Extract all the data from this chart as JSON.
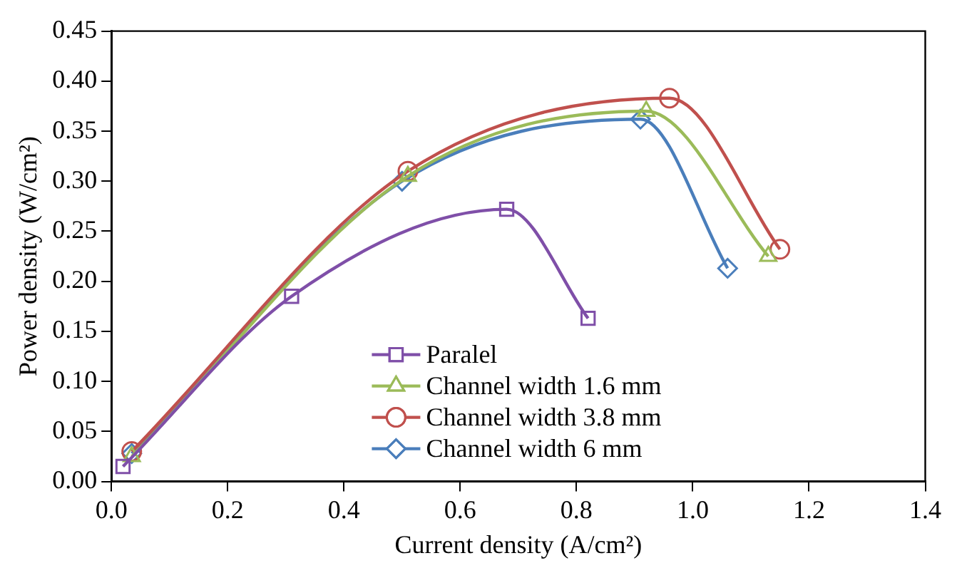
{
  "chart_data": {
    "type": "line",
    "xlabel": "Current density (A/cm²)",
    "ylabel": "Power density (W/cm²)",
    "xlim": [
      0,
      1.4
    ],
    "xticks": [
      {
        "value": 0,
        "label": "0.0"
      },
      {
        "value": 0.2,
        "label": "0.2"
      },
      {
        "value": 0.4,
        "label": "0.4"
      },
      {
        "value": 0.6,
        "label": "0.6"
      },
      {
        "value": 0.8,
        "label": "0.8"
      },
      {
        "value": 1,
        "label": "1.0"
      },
      {
        "value": 1.2,
        "label": "1.2"
      },
      {
        "value": 1.4,
        "label": "1.4"
      }
    ],
    "ylim": [
      0,
      0.45
    ],
    "yticks": [
      {
        "value": 0,
        "label": "0.00"
      },
      {
        "value": 0.05,
        "label": "0.05"
      },
      {
        "value": 0.1,
        "label": "0.10"
      },
      {
        "value": 0.15,
        "label": "0.15"
      },
      {
        "value": 0.2,
        "label": "0.20"
      },
      {
        "value": 0.25,
        "label": "0.25"
      },
      {
        "value": 0.3,
        "label": "0.30"
      },
      {
        "value": 0.35,
        "label": "0.35"
      },
      {
        "value": 0.4,
        "label": "0.40"
      },
      {
        "value": 0.45,
        "label": "0.45"
      }
    ],
    "grid": false,
    "legend": "bottom",
    "line_style": "solid",
    "series": [
      {
        "name": "Paralel",
        "color": "#7f4fa8",
        "marker": "square",
        "x": [
          0.02,
          0.31,
          0.68,
          0.82
        ],
        "values": [
          0.015,
          0.185,
          0.272,
          0.163
        ]
      },
      {
        "name": "Channel width 1.6 mm",
        "color": "#9bbb59",
        "marker": "triangle",
        "x": [
          0.035,
          0.51,
          0.92,
          1.13
        ],
        "values": [
          0.025,
          0.305,
          0.37,
          0.225
        ]
      },
      {
        "name": "Channel width 3.8 mm",
        "color": "#c0504d",
        "marker": "circle",
        "x": [
          0.035,
          0.51,
          0.96,
          1.15
        ],
        "values": [
          0.03,
          0.31,
          0.383,
          0.232
        ]
      },
      {
        "name": "Channel width 6 mm",
        "color": "#4a7ebb",
        "marker": "diamond",
        "x": [
          0.035,
          0.5,
          0.91,
          1.06
        ],
        "values": [
          0.028,
          0.3,
          0.362,
          0.213
        ]
      }
    ]
  }
}
